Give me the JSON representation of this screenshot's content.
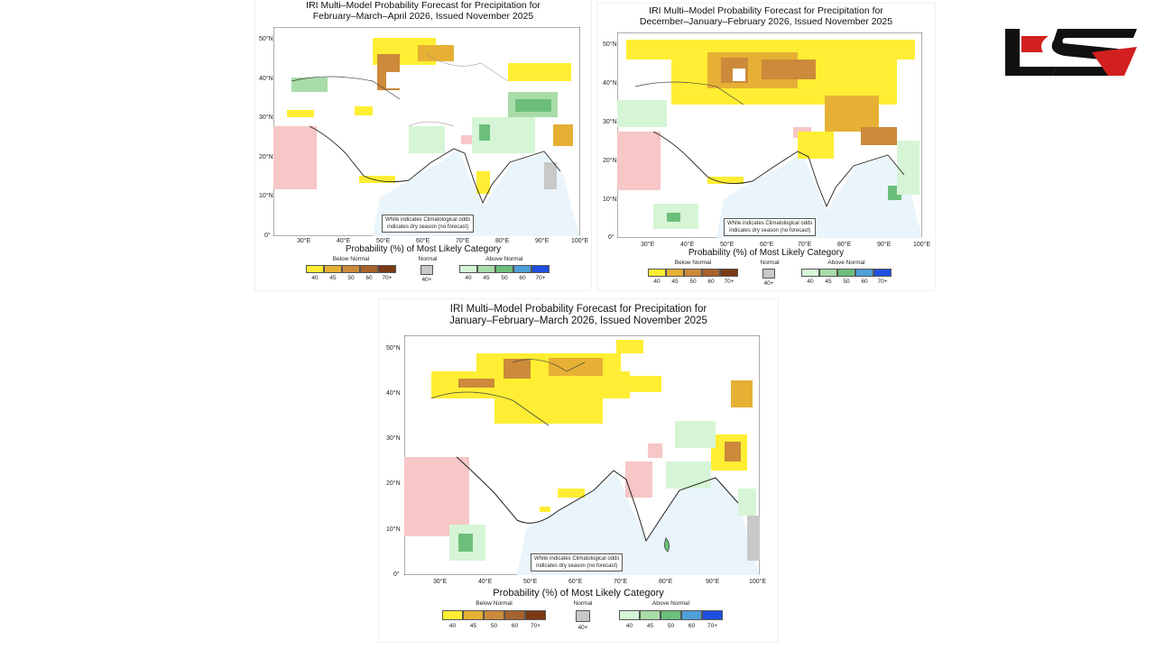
{
  "brand": {
    "logo": "red-black-brand-logo"
  },
  "legend_common": {
    "title": "Probability (%) of Most Likely Category",
    "below_label": "Below Normal",
    "normal_label": "Normal",
    "above_label": "Above Normal",
    "below_ticks": [
      "40",
      "45",
      "50",
      "60",
      "70+"
    ],
    "normal_ticks": [
      "40+"
    ],
    "above_ticks": [
      "40",
      "45",
      "50",
      "60",
      "70+"
    ],
    "colors": {
      "below": [
        "#ffee33",
        "#e6b035",
        "#cc8a3a",
        "#a8622c",
        "#7a3a16"
      ],
      "normal": [
        "#c8c8c8"
      ],
      "above": [
        "#d6f5d6",
        "#a8dca8",
        "#6cbf7a",
        "#4f9fd8",
        "#1f4fe0"
      ]
    },
    "dry_pink": "#f7c6c6",
    "ocean": "#eaf4fb"
  },
  "maps": [
    {
      "title_line1": "IRI Multi–Model Probability Forecast for Precipitation for",
      "title_line2": "February–March–April 2026, Issued November 2025",
      "lat_labels": [
        "50°N",
        "40°N",
        "30°N",
        "20°N",
        "10°N",
        "0°"
      ],
      "lon_labels": [
        "30°E",
        "40°E",
        "50°E",
        "60°E",
        "70°E",
        "80°E",
        "90°E",
        "100°E"
      ],
      "note_line1": "White indicates Climatological odds",
      "note_line2": "indicates dry season (no forecast)"
    },
    {
      "title_line1": "IRI Multi–Model Probability Forecast for Precipitation for",
      "title_line2": "December–January–February 2026, Issued November 2025",
      "lat_labels": [
        "50°N",
        "40°N",
        "30°N",
        "20°N",
        "10°N",
        "0°"
      ],
      "lon_labels": [
        "30°E",
        "40°E",
        "50°E",
        "60°E",
        "70°E",
        "80°E",
        "90°E",
        "100°E"
      ],
      "note_line1": "White indicates Climatological odds",
      "note_line2": "indicates dry season (no forecast)"
    },
    {
      "title_line1": "IRI Multi–Model Probability Forecast for Precipitation for",
      "title_line2": "January–February–March 2026, Issued November 2025",
      "lat_labels": [
        "50°N",
        "40°N",
        "30°N",
        "20°N",
        "10°N",
        "0°"
      ],
      "lon_labels": [
        "30°E",
        "40°E",
        "50°E",
        "60°E",
        "70°E",
        "80°E",
        "90°E",
        "100°E"
      ],
      "note_line1": "White indicates Climatological odds",
      "note_line2": "indicates dry season (no forecast)"
    }
  ]
}
